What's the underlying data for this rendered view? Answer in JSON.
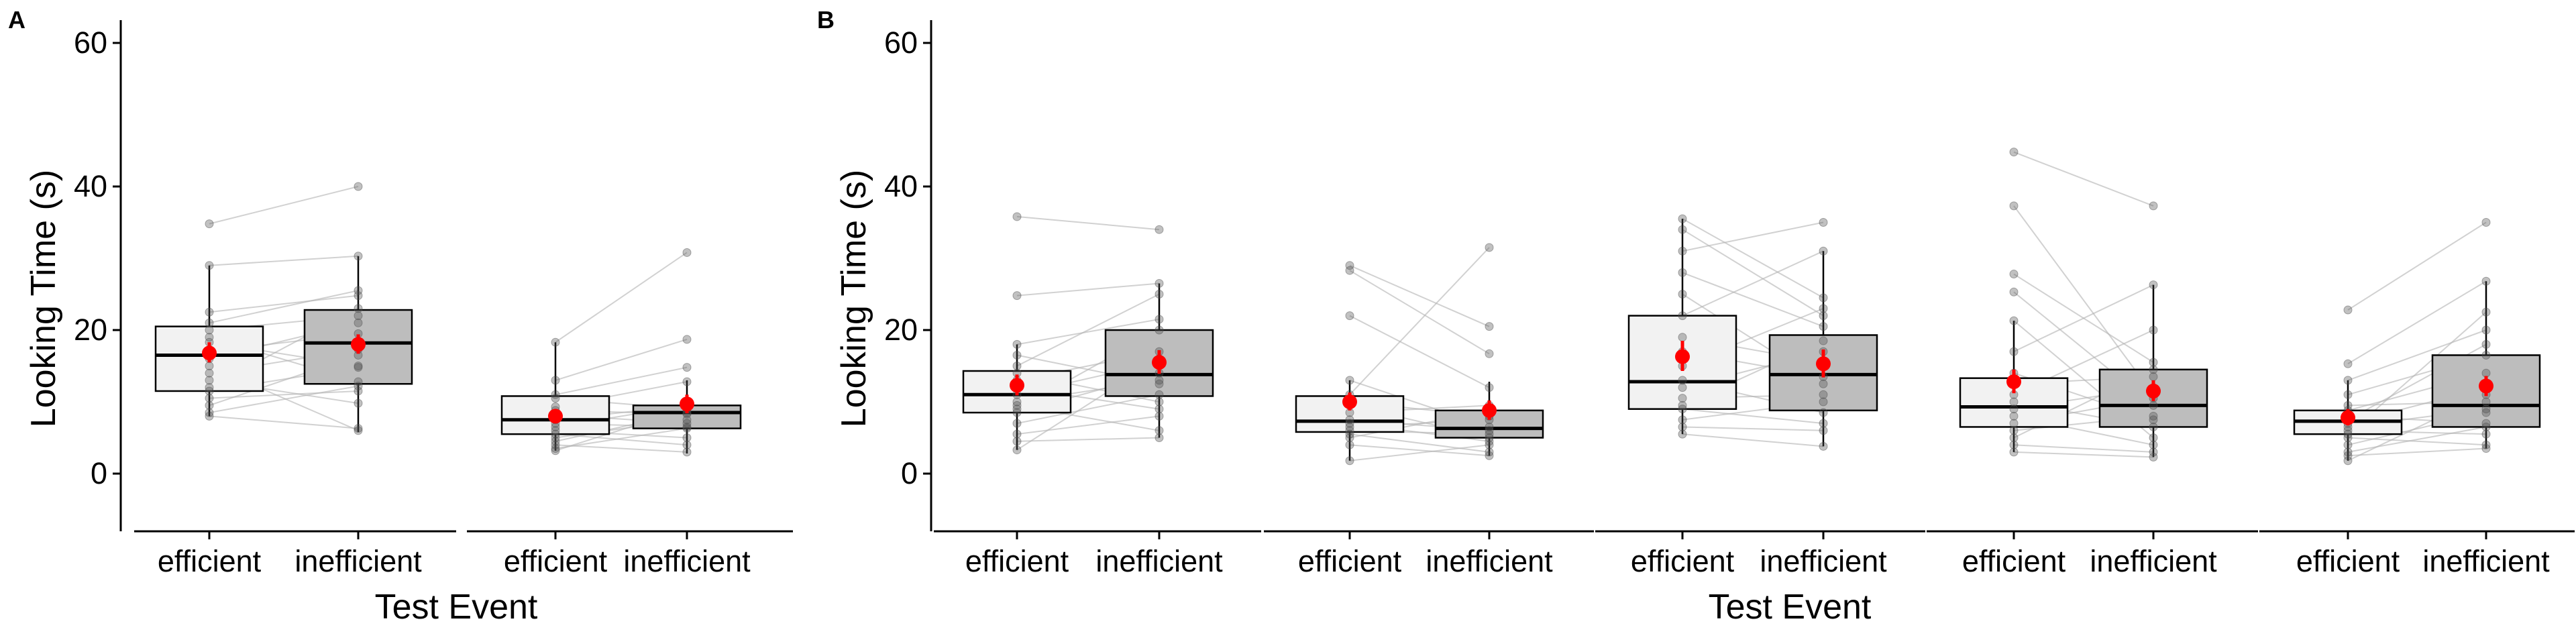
{
  "panels": [
    {
      "tag": "A",
      "ylabel": "Looking Time (s)",
      "xlabel": "Test Event"
    },
    {
      "tag": "B",
      "ylabel": "Looking Time (s)",
      "xlabel": "Test Event"
    }
  ],
  "chart_data": {
    "type": "box",
    "ylim": [
      -8,
      63
    ],
    "yticks": [
      0,
      20,
      40,
      60
    ],
    "categories": [
      "efficient",
      "inefficient"
    ],
    "colors": {
      "efficient": "#f2f2f2",
      "inefficient": "#bdbdbd",
      "mean": "#ff0000",
      "points": "#4d4d4d",
      "lines": "#b3b3b3"
    },
    "groups": [
      {
        "panel": 0,
        "boxes": [
          {
            "x": "efficient",
            "q1": 11.5,
            "median": 16.5,
            "q3": 20.5,
            "whisker_low": 8.0,
            "whisker_high": 29.0,
            "mean": 16.8,
            "mean_low": 15.5,
            "mean_high": 18.3
          },
          {
            "x": "inefficient",
            "q1": 12.5,
            "median": 18.2,
            "q3": 22.8,
            "whisker_low": 5.8,
            "whisker_high": 30.3,
            "mean": 18.0,
            "mean_low": 16.7,
            "mean_high": 19.4
          }
        ],
        "pairs": [
          [
            34.8,
            40.0
          ],
          [
            29.0,
            30.3
          ],
          [
            22.5,
            24.8
          ],
          [
            21.0,
            25.5
          ],
          [
            20.0,
            22.0
          ],
          [
            19.0,
            12.8
          ],
          [
            18.3,
            15.0
          ],
          [
            17.0,
            19.5
          ],
          [
            16.0,
            21.0
          ],
          [
            15.0,
            6.0
          ],
          [
            14.0,
            17.3
          ],
          [
            13.0,
            9.8
          ],
          [
            12.0,
            23.0
          ],
          [
            11.5,
            14.8
          ],
          [
            10.5,
            11.5
          ],
          [
            9.5,
            16.5
          ],
          [
            8.5,
            12.2
          ],
          [
            8.0,
            6.3
          ]
        ]
      },
      {
        "panel": 0,
        "boxes": [
          {
            "x": "efficient",
            "q1": 5.5,
            "median": 7.5,
            "q3": 10.8,
            "whisker_low": 3.2,
            "whisker_high": 18.3,
            "mean": 8.0,
            "mean_low": 7.2,
            "mean_high": 8.9
          },
          {
            "x": "inefficient",
            "q1": 6.3,
            "median": 8.5,
            "q3": 9.5,
            "whisker_low": 2.8,
            "whisker_high": 13.0,
            "mean": 9.7,
            "mean_low": 8.4,
            "mean_high": 11.0
          }
        ],
        "pairs": [
          [
            18.3,
            30.8
          ],
          [
            13.0,
            18.7
          ],
          [
            11.0,
            14.8
          ],
          [
            10.5,
            9.0
          ],
          [
            9.3,
            12.8
          ],
          [
            8.8,
            8.3
          ],
          [
            8.2,
            7.0
          ],
          [
            7.5,
            9.5
          ],
          [
            7.0,
            6.5
          ],
          [
            6.5,
            9.5
          ],
          [
            6.0,
            5.0
          ],
          [
            5.5,
            4.0
          ],
          [
            5.0,
            7.5
          ],
          [
            4.5,
            8.5
          ],
          [
            4.0,
            3.0
          ],
          [
            3.5,
            6.3
          ],
          [
            3.2,
            9.0
          ]
        ]
      },
      {
        "panel": 1,
        "boxes": [
          {
            "x": "efficient",
            "q1": 8.5,
            "median": 11.0,
            "q3": 14.3,
            "whisker_low": 3.3,
            "whisker_high": 18.0,
            "mean": 12.3,
            "mean_low": 10.9,
            "mean_high": 13.8
          },
          {
            "x": "inefficient",
            "q1": 10.8,
            "median": 13.8,
            "q3": 20.0,
            "whisker_low": 5.0,
            "whisker_high": 26.5,
            "mean": 15.5,
            "mean_low": 13.9,
            "mean_high": 17.2
          }
        ],
        "pairs": [
          [
            35.8,
            34.0
          ],
          [
            24.8,
            26.5
          ],
          [
            18.0,
            21.5
          ],
          [
            16.5,
            12.5
          ],
          [
            15.0,
            25.0
          ],
          [
            14.0,
            10.0
          ],
          [
            13.0,
            17.0
          ],
          [
            12.0,
            9.0
          ],
          [
            11.0,
            15.5
          ],
          [
            10.0,
            13.0
          ],
          [
            9.5,
            6.0
          ],
          [
            9.0,
            20.0
          ],
          [
            8.5,
            14.0
          ],
          [
            7.0,
            11.0
          ],
          [
            5.5,
            8.0
          ],
          [
            4.5,
            5.0
          ],
          [
            3.3,
            16.0
          ]
        ]
      },
      {
        "panel": 1,
        "boxes": [
          {
            "x": "efficient",
            "q1": 5.8,
            "median": 7.3,
            "q3": 10.8,
            "whisker_low": 1.8,
            "whisker_high": 13.0,
            "mean": 10.0,
            "mean_low": 8.8,
            "mean_high": 11.3
          },
          {
            "x": "inefficient",
            "q1": 5.0,
            "median": 6.3,
            "q3": 8.8,
            "whisker_low": 2.5,
            "whisker_high": 12.8,
            "mean": 8.8,
            "mean_low": 7.5,
            "mean_high": 10.2
          }
        ],
        "pairs": [
          [
            29.0,
            20.5
          ],
          [
            28.3,
            16.7
          ],
          [
            22.0,
            12.0
          ],
          [
            13.0,
            6.5
          ],
          [
            11.0,
            31.5
          ],
          [
            10.0,
            8.0
          ],
          [
            9.5,
            5.0
          ],
          [
            8.5,
            9.5
          ],
          [
            7.5,
            6.0
          ],
          [
            7.0,
            4.5
          ],
          [
            6.5,
            7.5
          ],
          [
            6.0,
            5.5
          ],
          [
            5.5,
            3.0
          ],
          [
            5.0,
            8.8
          ],
          [
            4.0,
            2.5
          ],
          [
            1.8,
            4.0
          ]
        ]
      },
      {
        "panel": 1,
        "boxes": [
          {
            "x": "efficient",
            "q1": 9.0,
            "median": 12.8,
            "q3": 22.0,
            "whisker_low": 5.5,
            "whisker_high": 35.5,
            "mean": 16.3,
            "mean_low": 14.3,
            "mean_high": 18.5
          },
          {
            "x": "inefficient",
            "q1": 8.8,
            "median": 13.8,
            "q3": 19.3,
            "whisker_low": 3.8,
            "whisker_high": 31.0,
            "mean": 15.3,
            "mean_low": 13.4,
            "mean_high": 17.3
          }
        ],
        "pairs": [
          [
            35.5,
            24.5
          ],
          [
            34.0,
            22.0
          ],
          [
            31.0,
            35.0
          ],
          [
            28.0,
            20.5
          ],
          [
            25.0,
            12.5
          ],
          [
            22.0,
            31.0
          ],
          [
            19.0,
            15.5
          ],
          [
            17.0,
            13.5
          ],
          [
            15.0,
            23.0
          ],
          [
            13.0,
            8.5
          ],
          [
            12.0,
            17.0
          ],
          [
            10.5,
            11.0
          ],
          [
            9.5,
            18.5
          ],
          [
            9.0,
            7.0
          ],
          [
            7.5,
            10.0
          ],
          [
            6.5,
            6.0
          ],
          [
            5.5,
            3.8
          ]
        ]
      },
      {
        "panel": 1,
        "boxes": [
          {
            "x": "efficient",
            "q1": 6.5,
            "median": 9.3,
            "q3": 13.3,
            "whisker_low": 3.0,
            "whisker_high": 21.3,
            "mean": 12.8,
            "mean_low": 11.2,
            "mean_high": 14.5
          },
          {
            "x": "inefficient",
            "q1": 6.5,
            "median": 9.5,
            "q3": 14.5,
            "whisker_low": 2.3,
            "whisker_high": 26.3,
            "mean": 11.5,
            "mean_low": 10.1,
            "mean_high": 13.0
          }
        ],
        "pairs": [
          [
            44.8,
            37.3
          ],
          [
            37.3,
            11.0
          ],
          [
            27.8,
            15.5
          ],
          [
            25.3,
            9.5
          ],
          [
            21.3,
            5.0
          ],
          [
            17.0,
            26.3
          ],
          [
            14.0,
            7.5
          ],
          [
            12.5,
            13.5
          ],
          [
            11.0,
            20.0
          ],
          [
            10.0,
            6.5
          ],
          [
            9.0,
            12.0
          ],
          [
            8.0,
            4.0
          ],
          [
            7.0,
            10.5
          ],
          [
            6.0,
            8.0
          ],
          [
            5.0,
            14.5
          ],
          [
            4.0,
            3.0
          ],
          [
            3.0,
            2.3
          ]
        ]
      },
      {
        "panel": 1,
        "boxes": [
          {
            "x": "efficient",
            "q1": 5.5,
            "median": 7.3,
            "q3": 8.8,
            "whisker_low": 1.8,
            "whisker_high": 13.0,
            "mean": 7.8,
            "mean_low": 6.7,
            "mean_high": 9.0
          },
          {
            "x": "inefficient",
            "q1": 6.5,
            "median": 9.5,
            "q3": 16.5,
            "whisker_low": 3.5,
            "whisker_high": 26.8,
            "mean": 12.2,
            "mean_low": 10.8,
            "mean_high": 13.6
          }
        ],
        "pairs": [
          [
            22.8,
            35.0
          ],
          [
            15.3,
            26.8
          ],
          [
            13.0,
            20.0
          ],
          [
            11.0,
            16.5
          ],
          [
            9.5,
            10.0
          ],
          [
            8.8,
            14.0
          ],
          [
            8.0,
            7.0
          ],
          [
            7.5,
            18.0
          ],
          [
            7.0,
            12.0
          ],
          [
            6.5,
            9.0
          ],
          [
            6.0,
            5.5
          ],
          [
            5.5,
            22.5
          ],
          [
            5.0,
            4.0
          ],
          [
            4.0,
            8.5
          ],
          [
            3.0,
            6.5
          ],
          [
            2.5,
            3.5
          ],
          [
            1.8,
            11.0
          ]
        ]
      }
    ]
  }
}
